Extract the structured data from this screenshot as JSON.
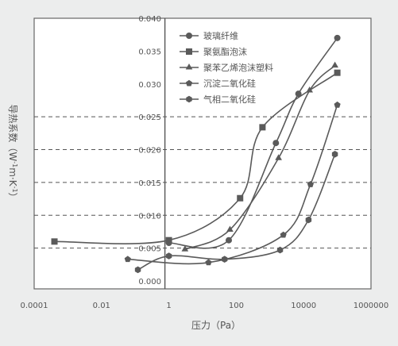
{
  "chart_data": {
    "type": "line",
    "xlabel": "压力（Pa）",
    "ylabel": "导热系数（W·m⁻¹·K⁻¹）",
    "ylabel_parts": {
      "main": "导热系数（W",
      "m": "m",
      "k": "K",
      "close": "）"
    },
    "x_scale": "log",
    "xlim": [
      0.0001,
      1000000
    ],
    "ylim": [
      0.0,
      0.04
    ],
    "x_ticks": [
      {
        "value": 0.0001,
        "label": "0.0001"
      },
      {
        "value": 0.01,
        "label": "0.01"
      },
      {
        "value": 1,
        "label": "1"
      },
      {
        "value": 100,
        "label": "100"
      },
      {
        "value": 10000,
        "label": "10000"
      },
      {
        "value": 1000000,
        "label": "1000000"
      }
    ],
    "y_ticks": [
      {
        "value": 0.0,
        "label": "0.000"
      },
      {
        "value": 0.005,
        "label": "0.005"
      },
      {
        "value": 0.01,
        "label": "0.010"
      },
      {
        "value": 0.015,
        "label": "0.015"
      },
      {
        "value": 0.02,
        "label": "0.020"
      },
      {
        "value": 0.025,
        "label": "0.025"
      },
      {
        "value": 0.03,
        "label": "0.030"
      },
      {
        "value": 0.035,
        "label": "0.035"
      },
      {
        "value": 0.04,
        "label": "0.040"
      }
    ],
    "dashed_gridlines_y": [
      0.005,
      0.01,
      0.015,
      0.02,
      0.025
    ],
    "legend_position": "top-right",
    "line_color": "#5a5a5a",
    "series": [
      {
        "name": "玻璃纤维",
        "marker": "circle",
        "points": [
          [
            1,
            0.0058
          ],
          [
            60,
            0.0062
          ],
          [
            1500,
            0.021
          ],
          [
            7000,
            0.0285
          ],
          [
            100000,
            0.037
          ]
        ]
      },
      {
        "name": "聚氨酯泡沫",
        "marker": "square",
        "points": [
          [
            0.0004,
            0.006
          ],
          [
            1,
            0.0062
          ],
          [
            130,
            0.0126
          ],
          [
            600,
            0.0234
          ],
          [
            100000,
            0.0317
          ]
        ]
      },
      {
        "name": "聚苯乙烯泡沫塑料",
        "marker": "triangle",
        "points": [
          [
            3,
            0.0048
          ],
          [
            65,
            0.0078
          ],
          [
            1800,
            0.0187
          ],
          [
            15000,
            0.029
          ],
          [
            85000,
            0.0328
          ]
        ]
      },
      {
        "name": "沉淀二氧化硅",
        "marker": "pentagon",
        "points": [
          [
            0.06,
            0.0033
          ],
          [
            15,
            0.0028
          ],
          [
            2500,
            0.007
          ],
          [
            16000,
            0.0147
          ],
          [
            100000,
            0.0268
          ]
        ]
      },
      {
        "name": "气相二氧化硅",
        "marker": "hexagon",
        "points": [
          [
            0.12,
            0.0017
          ],
          [
            1,
            0.0038
          ],
          [
            45,
            0.0033
          ],
          [
            2000,
            0.0047
          ],
          [
            14000,
            0.0093
          ],
          [
            85000,
            0.0193
          ]
        ]
      }
    ]
  }
}
